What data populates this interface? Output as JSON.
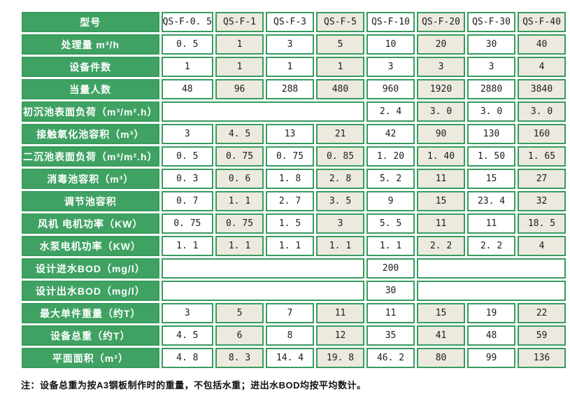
{
  "colors": {
    "green_fill": "#3fa263",
    "green_border": "#379c5e",
    "beige_cell": "#ece9de",
    "white_cell": "#ffffff",
    "label_text": "#ffffff",
    "data_text": "#1c1c1c"
  },
  "table": {
    "header": {
      "label": "型号",
      "models": [
        "QS-F-0. 5",
        "QS-F-1",
        "QS-F-3",
        "QS-F-5",
        "QS-F-10",
        "QS-F-20",
        "QS-F-30",
        "QS-F-40"
      ]
    },
    "rows": [
      {
        "label": "处理量 m³/h",
        "cells": [
          {
            "t": "0. 5"
          },
          {
            "t": "1"
          },
          {
            "t": "3"
          },
          {
            "t": "5"
          },
          {
            "t": "10"
          },
          {
            "t": "20"
          },
          {
            "t": "30"
          },
          {
            "t": "40"
          }
        ]
      },
      {
        "label": "设备件数",
        "cells": [
          {
            "t": "1"
          },
          {
            "t": "1"
          },
          {
            "t": "1"
          },
          {
            "t": "1"
          },
          {
            "t": "3"
          },
          {
            "t": "3"
          },
          {
            "t": "3"
          },
          {
            "t": "4"
          }
        ]
      },
      {
        "label": "当量人数",
        "cells": [
          {
            "t": "48"
          },
          {
            "t": "96"
          },
          {
            "t": "288"
          },
          {
            "t": "480"
          },
          {
            "t": "960"
          },
          {
            "t": "1920"
          },
          {
            "t": "2880"
          },
          {
            "t": "3840"
          }
        ]
      },
      {
        "label": "初沉池表面负荷（m³/m².h）",
        "cells": [
          {
            "t": "",
            "span": 4
          },
          {
            "t": "2. 4"
          },
          {
            "t": "3. 0"
          },
          {
            "t": "3. 0"
          },
          {
            "t": "3. 0"
          }
        ]
      },
      {
        "label": "接触氧化池容积（m³）",
        "cells": [
          {
            "t": "3"
          },
          {
            "t": "4. 5"
          },
          {
            "t": "13"
          },
          {
            "t": "21"
          },
          {
            "t": "42"
          },
          {
            "t": "90"
          },
          {
            "t": "130"
          },
          {
            "t": "160"
          }
        ]
      },
      {
        "label": "二沉池表面负荷（m³/m².h）",
        "cells": [
          {
            "t": "0. 5"
          },
          {
            "t": "0. 75"
          },
          {
            "t": "0. 75"
          },
          {
            "t": "0. 85"
          },
          {
            "t": "1. 20"
          },
          {
            "t": "1. 40"
          },
          {
            "t": "1. 50"
          },
          {
            "t": "1. 65"
          }
        ]
      },
      {
        "label": "消毒池容积（m³）",
        "cells": [
          {
            "t": "0. 3"
          },
          {
            "t": "0. 6"
          },
          {
            "t": "1. 8"
          },
          {
            "t": "2. 8"
          },
          {
            "t": "5. 2"
          },
          {
            "t": "11"
          },
          {
            "t": "15"
          },
          {
            "t": "27"
          }
        ]
      },
      {
        "label": "调节池容积",
        "cells": [
          {
            "t": "0. 7"
          },
          {
            "t": "1. 1"
          },
          {
            "t": "2. 7"
          },
          {
            "t": "3. 5"
          },
          {
            "t": "9"
          },
          {
            "t": "15"
          },
          {
            "t": "23. 4"
          },
          {
            "t": "32"
          }
        ]
      },
      {
        "label": "风机 电机功率（KW）",
        "cells": [
          {
            "t": "0. 75"
          },
          {
            "t": "0. 75"
          },
          {
            "t": "1. 5"
          },
          {
            "t": "3"
          },
          {
            "t": "5. 5"
          },
          {
            "t": "11"
          },
          {
            "t": "11"
          },
          {
            "t": "18. 5"
          }
        ]
      },
      {
        "label": "水泵电机功率（KW）",
        "cells": [
          {
            "t": "1. 1"
          },
          {
            "t": "1. 1"
          },
          {
            "t": "1. 1"
          },
          {
            "t": "1. 1"
          },
          {
            "t": "1. 1"
          },
          {
            "t": "2. 2"
          },
          {
            "t": "2. 2"
          },
          {
            "t": "4"
          }
        ]
      },
      {
        "label": "设计进水BOD（mg/l）",
        "cells": [
          {
            "t": "",
            "span": 4
          },
          {
            "t": "200"
          },
          {
            "t": "",
            "span": 3
          }
        ]
      },
      {
        "label": "设计出水BOD（mg/l）",
        "cells": [
          {
            "t": "",
            "span": 4
          },
          {
            "t": "30"
          },
          {
            "t": "",
            "span": 3
          }
        ]
      },
      {
        "label": "最大单件重量（约T）",
        "cells": [
          {
            "t": "3"
          },
          {
            "t": "5"
          },
          {
            "t": "7"
          },
          {
            "t": "11"
          },
          {
            "t": "11"
          },
          {
            "t": "15"
          },
          {
            "t": "19"
          },
          {
            "t": "22"
          }
        ]
      },
      {
        "label": "设备总重（约T）",
        "cells": [
          {
            "t": "4. 5"
          },
          {
            "t": "6"
          },
          {
            "t": "8"
          },
          {
            "t": "12"
          },
          {
            "t": "35"
          },
          {
            "t": "41"
          },
          {
            "t": "48"
          },
          {
            "t": "59"
          }
        ]
      },
      {
        "label": "平面面积（m²）",
        "cells": [
          {
            "t": "4. 8"
          },
          {
            "t": "8. 3"
          },
          {
            "t": "14. 4"
          },
          {
            "t": "19. 8"
          },
          {
            "t": "46. 2"
          },
          {
            "t": "80"
          },
          {
            "t": "99"
          },
          {
            "t": "136"
          }
        ]
      }
    ],
    "note": "注：设备总重为按A3钢板制作时的重量，不包括水重；进出水BOD均按平均数计。"
  }
}
